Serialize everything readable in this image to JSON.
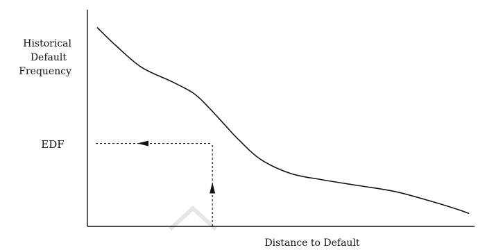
{
  "chart_data": {
    "type": "line",
    "title": "",
    "xlabel": "Distance to Default",
    "ylabel_lines": [
      "Historical",
      "Default",
      "Frequency"
    ],
    "y_marker_label": "EDF",
    "grid": false,
    "legend": "none",
    "xlim": [
      0,
      100
    ],
    "ylim": [
      0,
      100
    ],
    "series": [
      {
        "x": [
          0,
          5,
          12,
          20,
          26,
          30,
          34,
          38,
          44,
          52,
          60,
          70,
          80,
          90,
          97,
          100
        ],
        "y": [
          96,
          87,
          76,
          69,
          63,
          56,
          48,
          40,
          30,
          23,
          20,
          17,
          14,
          9,
          5,
          3
        ]
      }
    ],
    "annotation": {
      "x": 31,
      "y": 38,
      "y_label": "EDF"
    }
  }
}
